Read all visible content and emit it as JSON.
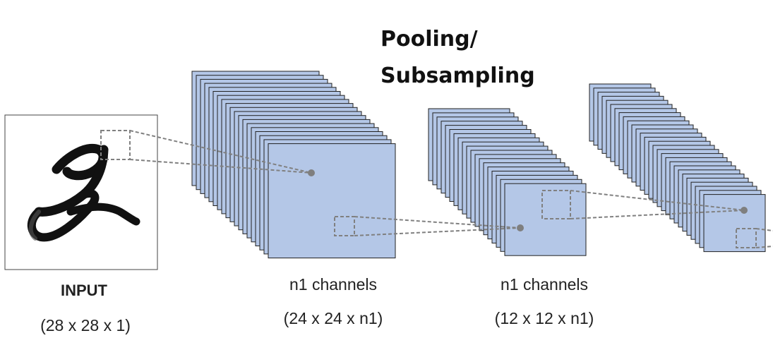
{
  "title": {
    "line1": "Pooling/",
    "line2": "Subsampling"
  },
  "input": {
    "label": "INPUT",
    "dims": "(28 x 28 x 1)"
  },
  "layers": [
    {
      "label": "n1 channels",
      "dims": "(24 x 24 x n1)"
    },
    {
      "label": "n1 channels",
      "dims": "(12 x 12 x n1)"
    }
  ],
  "colors": {
    "feature_map_fill": "#b4c7e7",
    "feature_map_stroke": "#222222",
    "connector": "#808080",
    "node": "#7f7f7f"
  }
}
